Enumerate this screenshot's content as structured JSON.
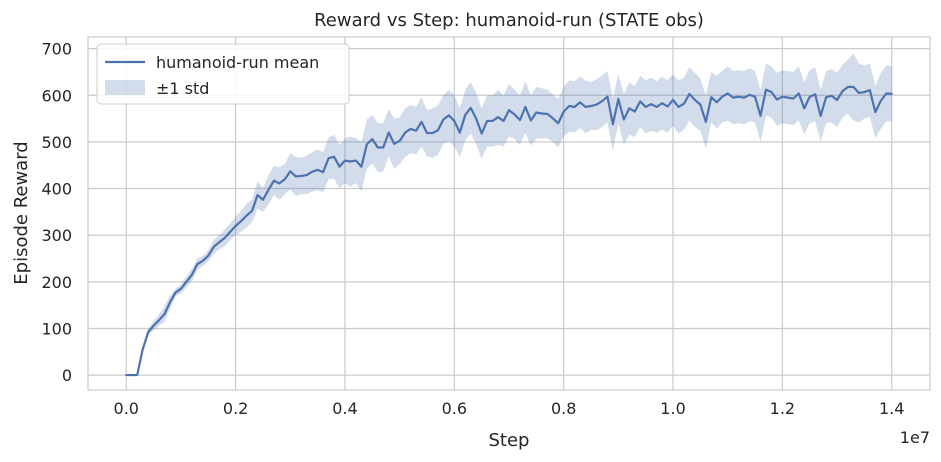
{
  "chart_data": {
    "type": "line",
    "title": "Reward vs Step: humanoid-run (STATE obs)",
    "xlabel": "Step",
    "ylabel": "Episode Reward",
    "x_offset_label": "1e7",
    "x_ticks": [
      "0.0",
      "0.2",
      "0.4",
      "0.6",
      "0.8",
      "1.0",
      "1.2",
      "1.4"
    ],
    "x_tick_values": [
      0.0,
      0.2,
      0.4,
      0.6,
      0.8,
      1.0,
      1.2,
      1.4
    ],
    "y_ticks": [
      "0",
      "100",
      "200",
      "300",
      "400",
      "500",
      "600",
      "700"
    ],
    "y_tick_values": [
      0,
      100,
      200,
      300,
      400,
      500,
      600,
      700
    ],
    "xlim": [
      -0.07,
      1.47
    ],
    "ylim": [
      -32,
      725
    ],
    "grid": true,
    "legend_position": "top-left",
    "series": [
      {
        "name": "humanoid-run mean",
        "color": "#4c72b0",
        "x": [
          0.0,
          0.02,
          0.03,
          0.04,
          0.05,
          0.06,
          0.07,
          0.08,
          0.09,
          0.1,
          0.11,
          0.12,
          0.13,
          0.14,
          0.15,
          0.16,
          0.17,
          0.18,
          0.19,
          0.2,
          0.21,
          0.22,
          0.23,
          0.24,
          0.25,
          0.26,
          0.27,
          0.28,
          0.29,
          0.3,
          0.31,
          0.32,
          0.33,
          0.34,
          0.35,
          0.36,
          0.37,
          0.38,
          0.39,
          0.4,
          0.41,
          0.42,
          0.43,
          0.44,
          0.45,
          0.46,
          0.47,
          0.48,
          0.49,
          0.5,
          0.51,
          0.52,
          0.53,
          0.54,
          0.55,
          0.56,
          0.57,
          0.58,
          0.59,
          0.6,
          0.61,
          0.62,
          0.63,
          0.64,
          0.65,
          0.66,
          0.67,
          0.68,
          0.69,
          0.7,
          0.71,
          0.72,
          0.73,
          0.74,
          0.75,
          0.76,
          0.77,
          0.78,
          0.79,
          0.8,
          0.81,
          0.82,
          0.83,
          0.84,
          0.85,
          0.86,
          0.87,
          0.88,
          0.89,
          0.9,
          0.91,
          0.92,
          0.93,
          0.94,
          0.95,
          0.96,
          0.97,
          0.98,
          0.99,
          1.0,
          1.01,
          1.02,
          1.03,
          1.04,
          1.05,
          1.06,
          1.07,
          1.08,
          1.09,
          1.1,
          1.11,
          1.12,
          1.13,
          1.14,
          1.15,
          1.16,
          1.17,
          1.18,
          1.19,
          1.2,
          1.21,
          1.22,
          1.23,
          1.24,
          1.25,
          1.26,
          1.27,
          1.28,
          1.29,
          1.3,
          1.31,
          1.32,
          1.33,
          1.34,
          1.35,
          1.36,
          1.37,
          1.38,
          1.39,
          1.4
        ],
        "values": [
          0,
          0,
          55,
          92,
          106,
          118,
          131,
          156,
          177,
          185,
          200,
          215,
          238,
          245,
          256,
          275,
          285,
          294,
          307,
          320,
          330,
          342,
          352,
          386,
          376,
          397,
          417,
          411,
          420,
          437,
          426,
          427,
          429,
          436,
          440,
          435,
          465,
          468,
          447,
          460,
          458,
          460,
          447,
          495,
          506,
          488,
          488,
          520,
          496,
          502,
          520,
          528,
          524,
          543,
          519,
          519,
          525,
          548,
          557,
          545,
          520,
          558,
          573,
          550,
          518,
          545,
          545,
          553,
          545,
          568,
          559,
          547,
          575,
          546,
          563,
          561,
          560,
          551,
          540,
          565,
          577,
          575,
          585,
          575,
          577,
          580,
          587,
          597,
          538,
          592,
          548,
          572,
          565,
          587,
          575,
          581,
          575,
          583,
          576,
          590,
          575,
          582,
          603,
          590,
          580,
          543,
          596,
          585,
          597,
          604,
          595,
          597,
          595,
          601,
          597,
          556,
          612,
          607,
          591,
          597,
          595,
          593,
          604,
          572,
          597,
          602,
          556,
          596,
          599,
          590,
          609,
          618,
          618,
          605,
          607,
          611,
          564,
          588,
          604,
          603
        ]
      },
      {
        "name": "±1 std",
        "color": "#4c72b0",
        "fill_opacity": 0.25,
        "upper": [
          0,
          0,
          60,
          100,
          116,
          130,
          148,
          170,
          185,
          195,
          212,
          228,
          250,
          256,
          268,
          290,
          300,
          312,
          325,
          340,
          352,
          368,
          376,
          415,
          402,
          428,
          448,
          446,
          452,
          476,
          468,
          466,
          470,
          478,
          484,
          478,
          510,
          515,
          494,
          508,
          512,
          508,
          500,
          548,
          558,
          540,
          540,
          570,
          550,
          552,
          572,
          580,
          575,
          596,
          568,
          572,
          578,
          600,
          612,
          600,
          572,
          612,
          628,
          605,
          572,
          600,
          600,
          612,
          600,
          624,
          612,
          600,
          630,
          600,
          618,
          615,
          612,
          602,
          592,
          618,
          632,
          630,
          640,
          632,
          628,
          635,
          642,
          652,
          595,
          645,
          602,
          628,
          620,
          642,
          632,
          638,
          630,
          640,
          632,
          645,
          632,
          638,
          660,
          648,
          636,
          600,
          650,
          642,
          652,
          662,
          652,
          654,
          652,
          658,
          652,
          612,
          668,
          662,
          648,
          654,
          652,
          650,
          662,
          628,
          654,
          660,
          612,
          652,
          656,
          648,
          666,
          676,
          690,
          668,
          664,
          668,
          620,
          648,
          664,
          662
        ],
        "lower": [
          0,
          0,
          50,
          84,
          96,
          106,
          114,
          142,
          169,
          175,
          188,
          202,
          226,
          234,
          244,
          260,
          270,
          276,
          289,
          300,
          308,
          316,
          328,
          357,
          350,
          366,
          386,
          376,
          388,
          398,
          384,
          388,
          388,
          394,
          396,
          392,
          420,
          421,
          400,
          412,
          404,
          412,
          394,
          442,
          454,
          436,
          436,
          470,
          442,
          452,
          468,
          476,
          473,
          490,
          470,
          466,
          472,
          496,
          502,
          490,
          468,
          504,
          518,
          495,
          464,
          490,
          490,
          494,
          490,
          512,
          506,
          494,
          520,
          492,
          508,
          507,
          508,
          500,
          488,
          512,
          522,
          520,
          530,
          518,
          526,
          525,
          532,
          542,
          481,
          539,
          494,
          516,
          510,
          532,
          518,
          524,
          520,
          526,
          520,
          535,
          518,
          526,
          546,
          532,
          524,
          486,
          542,
          528,
          542,
          546,
          538,
          540,
          538,
          544,
          542,
          500,
          556,
          552,
          534,
          540,
          538,
          536,
          546,
          516,
          540,
          544,
          500,
          540,
          542,
          532,
          552,
          560,
          546,
          542,
          550,
          554,
          508,
          528,
          544,
          544
        ]
      }
    ]
  }
}
